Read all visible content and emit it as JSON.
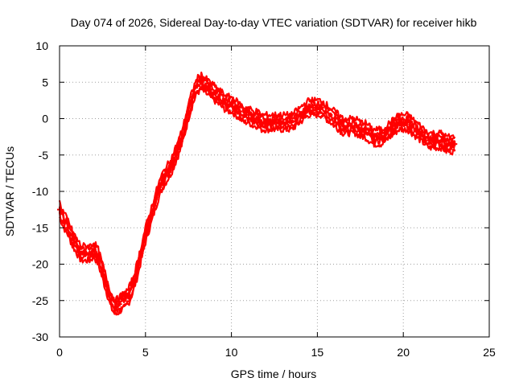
{
  "chart_data": {
    "type": "line",
    "title": "Day 074 of 2026, Sidereal Day-to-day VTEC variation (SDTVAR) for receiver hikb",
    "xlabel": "GPS time / hours",
    "ylabel": "SDTVAR / TECUs",
    "xlim": [
      0,
      25
    ],
    "ylim": [
      -30,
      10
    ],
    "xticks": [
      0,
      5,
      10,
      15,
      20,
      25
    ],
    "xtick_labels": [
      "0",
      "5",
      "10",
      "15",
      "20",
      "25"
    ],
    "yticks": [
      10,
      5,
      0,
      -5,
      -10,
      -15,
      -20,
      -25,
      -30
    ],
    "ytick_labels": [
      "10",
      "5",
      "0",
      "-5",
      "-10",
      "-15",
      "-20",
      "-25",
      "-30"
    ],
    "grid": true,
    "series_color": "#ff0000",
    "series": [
      {
        "name": "SDTVAR",
        "band_width": 1.0,
        "x": [
          0.0,
          0.25,
          0.5,
          0.75,
          1.0,
          1.25,
          1.5,
          1.75,
          2.0,
          2.25,
          2.5,
          2.75,
          3.0,
          3.25,
          3.5,
          3.75,
          4.0,
          4.25,
          4.5,
          4.75,
          5.0,
          5.25,
          5.5,
          5.75,
          6.0,
          6.25,
          6.5,
          6.75,
          7.0,
          7.25,
          7.5,
          7.75,
          8.0,
          8.25,
          8.5,
          8.75,
          9.0,
          9.25,
          9.5,
          9.75,
          10.0,
          10.25,
          10.5,
          10.75,
          11.0,
          11.25,
          11.5,
          11.75,
          12.0,
          12.25,
          12.5,
          12.75,
          13.0,
          13.25,
          13.5,
          13.75,
          14.0,
          14.25,
          14.5,
          14.75,
          15.0,
          15.25,
          15.5,
          15.75,
          16.0,
          16.25,
          16.5,
          16.75,
          17.0,
          17.25,
          17.5,
          17.75,
          18.0,
          18.25,
          18.5,
          18.75,
          19.0,
          19.25,
          19.5,
          19.75,
          20.0,
          20.25,
          20.5,
          20.75,
          21.0,
          21.25,
          21.5,
          21.75,
          22.0,
          22.25,
          22.5,
          22.75,
          23.0
        ],
        "y": [
          -12.5,
          -14.0,
          -15.0,
          -16.5,
          -17.5,
          -18.5,
          -18.5,
          -18.5,
          -18.0,
          -19.0,
          -21.0,
          -23.0,
          -25.0,
          -26.0,
          -25.5,
          -25.0,
          -24.5,
          -23.0,
          -21.0,
          -18.5,
          -16.0,
          -14.0,
          -12.0,
          -10.0,
          -8.5,
          -7.5,
          -6.5,
          -5.0,
          -3.5,
          -1.5,
          1.0,
          3.0,
          4.5,
          5.0,
          4.5,
          4.0,
          3.5,
          3.0,
          2.5,
          2.0,
          2.0,
          1.5,
          1.0,
          0.5,
          0.5,
          0.0,
          0.0,
          -0.5,
          -0.5,
          -0.5,
          -0.5,
          -0.5,
          -0.5,
          -0.5,
          -0.5,
          0.0,
          0.5,
          1.0,
          1.5,
          1.5,
          1.5,
          1.5,
          1.0,
          0.5,
          0.0,
          -0.5,
          -1.0,
          -1.0,
          -1.0,
          -1.0,
          -1.5,
          -1.5,
          -2.0,
          -2.5,
          -2.5,
          -2.5,
          -2.0,
          -1.5,
          -1.0,
          -0.5,
          -0.5,
          -0.5,
          -1.0,
          -1.5,
          -2.0,
          -2.5,
          -3.0,
          -3.0,
          -3.0,
          -3.0,
          -3.5,
          -3.5,
          -3.5
        ]
      }
    ]
  }
}
